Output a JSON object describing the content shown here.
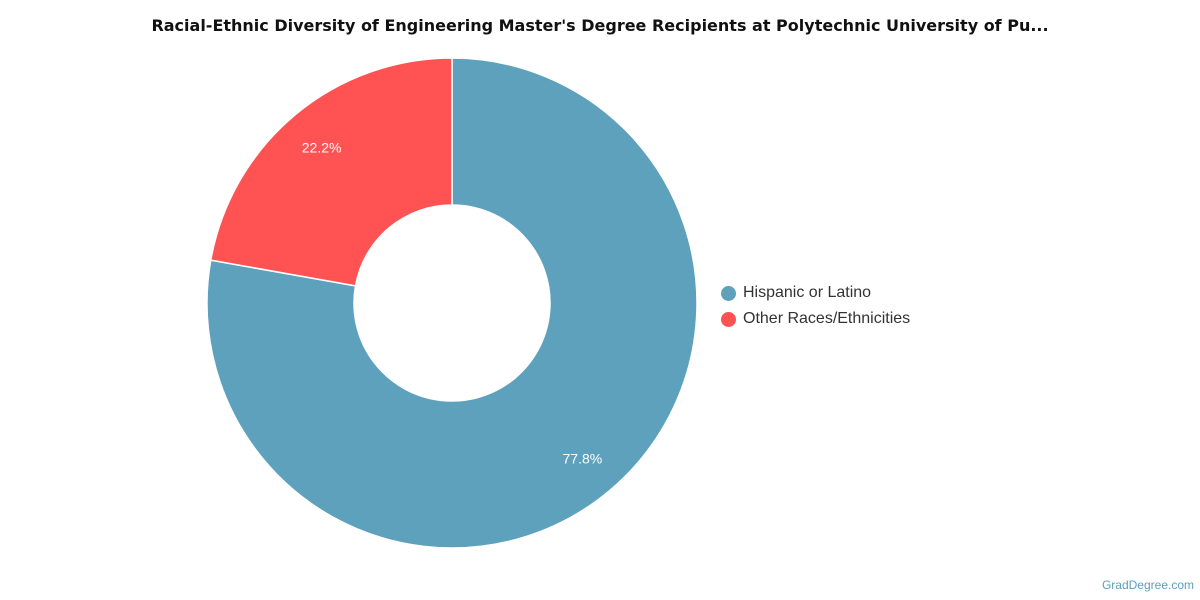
{
  "chart_data": {
    "type": "pie",
    "title": "Racial-Ethnic Diversity of Engineering Master's Degree Recipients at Polytechnic University of Pu...",
    "donut": true,
    "legend_position": "right",
    "series": [
      {
        "name": "Hispanic or Latino",
        "value": 77.8,
        "label": "77.8%",
        "color": "#5ea1bd"
      },
      {
        "name": "Other Races/Ethnicities",
        "value": 22.2,
        "label": "22.2%",
        "color": "#ff5252"
      }
    ]
  },
  "watermark": "GradDegree.com"
}
